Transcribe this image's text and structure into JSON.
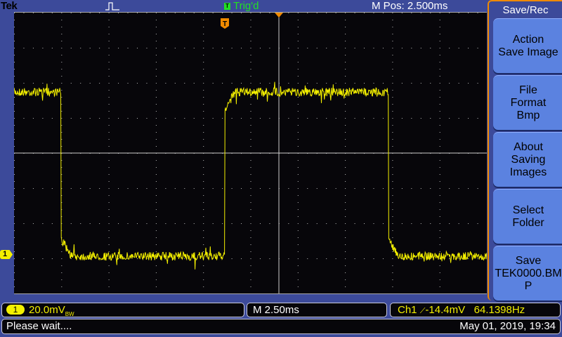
{
  "header": {
    "brand": "Tek",
    "acquisition_icon": "pulse-run-icon",
    "trigger_badge": "T",
    "trigger_status": "Trig'd",
    "m_pos": "M Pos: 2.500ms"
  },
  "screen": {
    "trigger_position_marker": "T",
    "channel_marker": "1",
    "trace_color": "#f4f000"
  },
  "menu": {
    "title": "Save/Rec",
    "buttons": [
      {
        "label": "Action\nSave Image"
      },
      {
        "label": "File\nFormat\nBmp"
      },
      {
        "label": "About\nSaving\nImages"
      },
      {
        "label": "Select\nFolder"
      },
      {
        "label": "Save\nTEK0000.BM\nP"
      }
    ]
  },
  "status": {
    "channel": "1",
    "vertical_scale": "20.0mV",
    "bw_limit": "BW",
    "timebase": "M 2.50ms",
    "trigger_source": "Ch1",
    "trigger_slope_icon": "rising-edge-icon",
    "trigger_level": "-14.4mV",
    "frequency": "64.1398Hz",
    "message": "Please wait....",
    "datetime": "May 01, 2019, 19:34"
  },
  "colors": {
    "accent": "#f08a00",
    "channel1": "#f4f000",
    "trig": "#22e022",
    "menu_button": "#5b82e0"
  }
}
